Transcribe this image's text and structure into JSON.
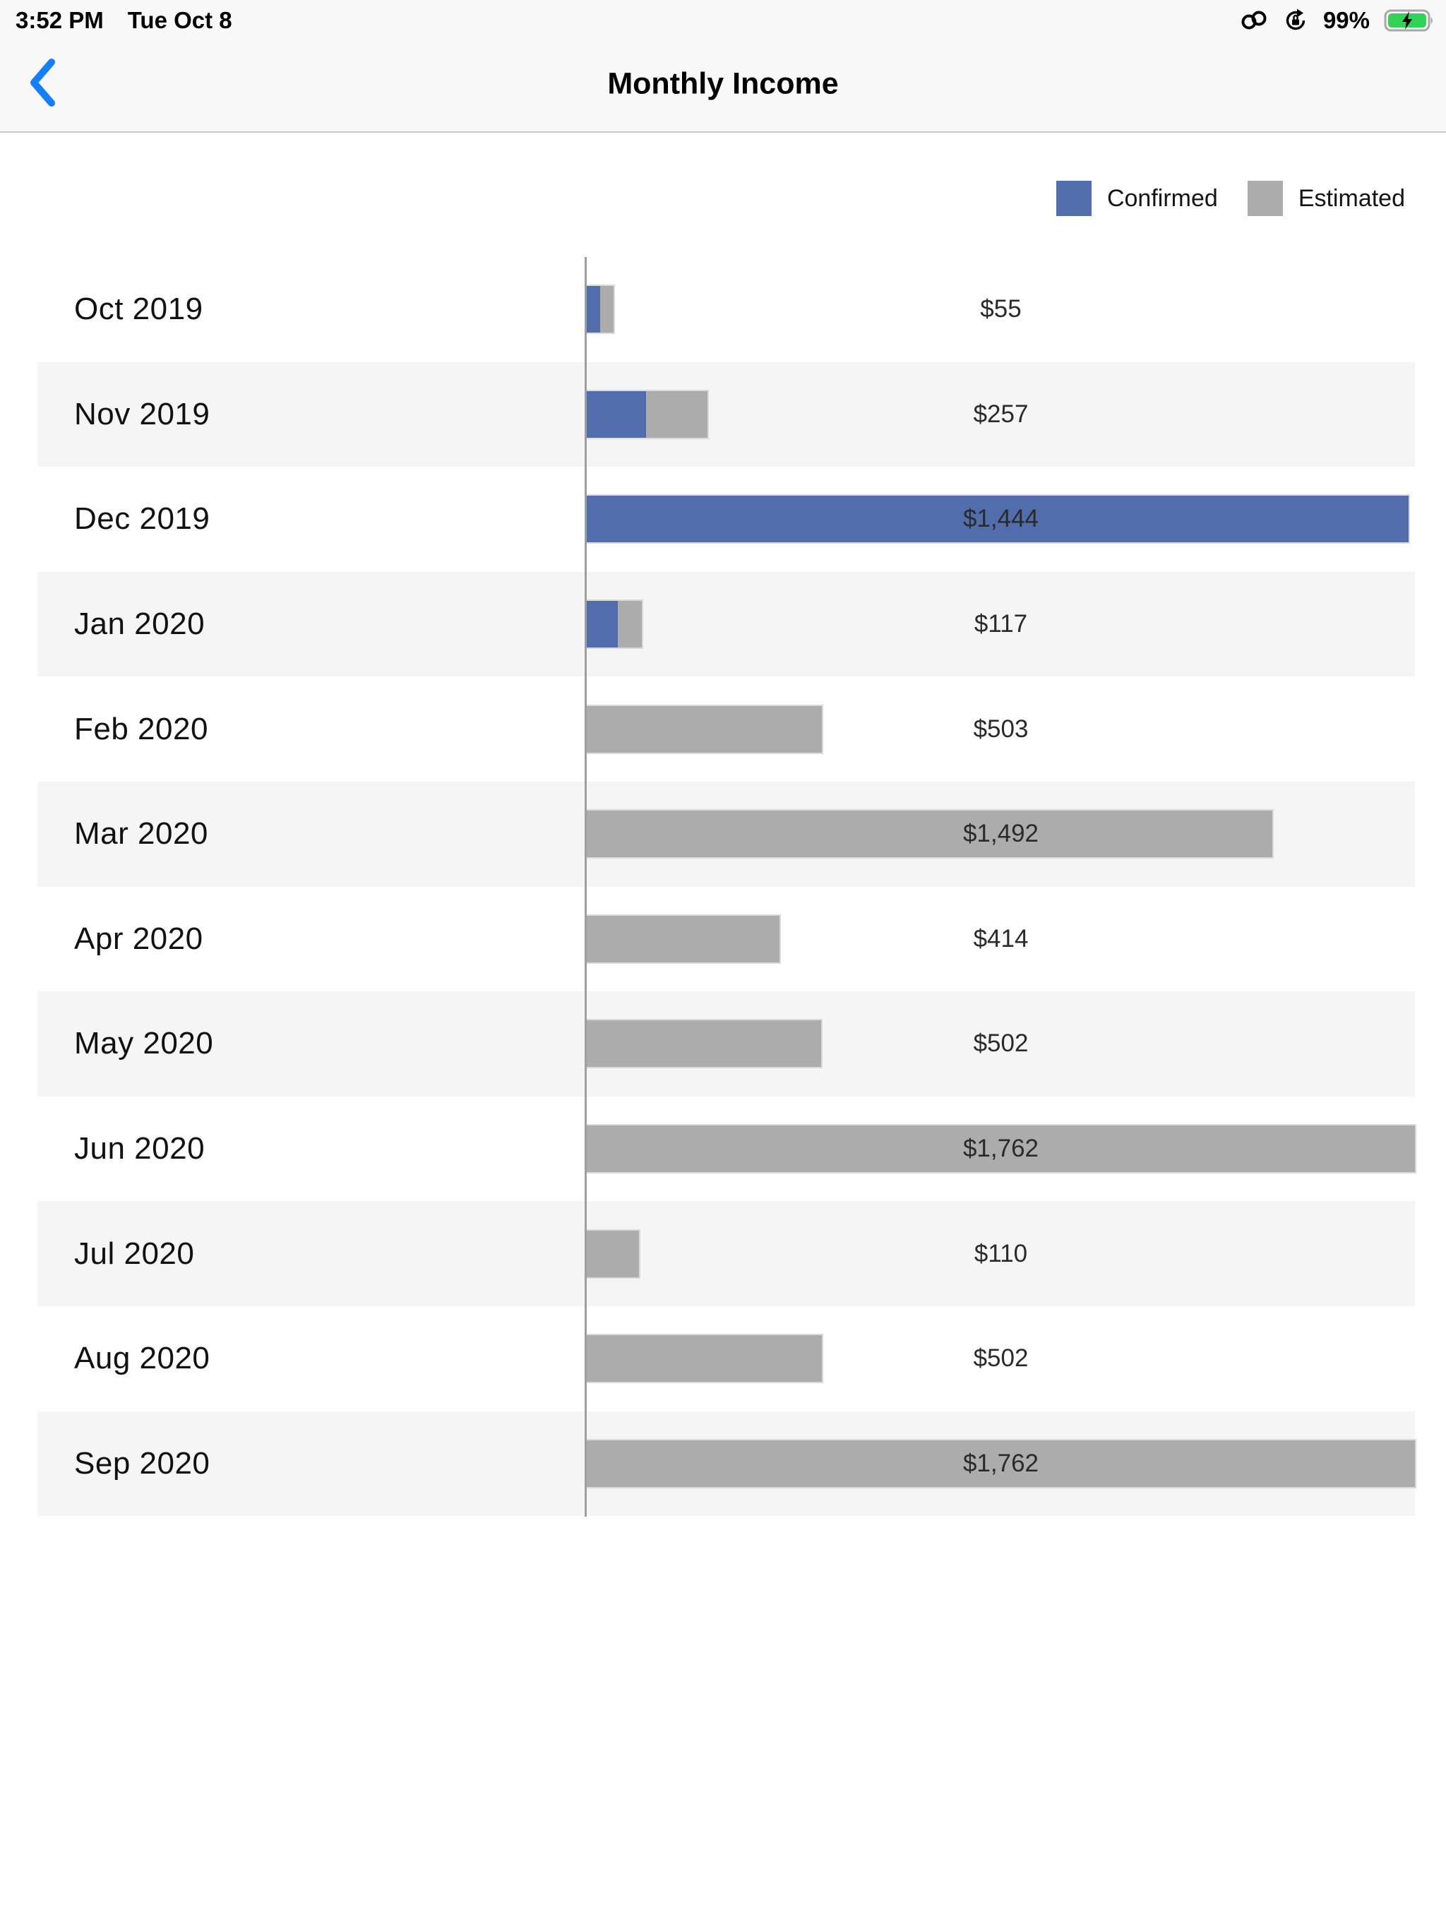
{
  "status_bar": {
    "time": "3:52 PM",
    "date": "Tue Oct 8",
    "battery_percent": "99%",
    "battery_color": "#32d158",
    "icons": [
      "personal-hotspot",
      "rotation-lock",
      "battery-charging"
    ]
  },
  "nav": {
    "title": "Monthly Income",
    "back_color": "#157efb"
  },
  "legend": {
    "confirmed_label": "Confirmed",
    "estimated_label": "Estimated",
    "confirmed_color": "#526dab",
    "estimated_color": "#acacac"
  },
  "chart_data": {
    "type": "bar",
    "orientation": "horizontal",
    "stacked": true,
    "unit": "USD",
    "axis_max": 1762,
    "grid": false,
    "legend_position": "top-right",
    "categories": [
      "Oct 2019",
      "Nov 2019",
      "Dec 2019",
      "Jan 2020",
      "Feb 2020",
      "Mar 2020",
      "Apr 2020",
      "May 2020",
      "Jun 2020",
      "Jul 2020",
      "Aug 2020",
      "Sep 2020"
    ],
    "series": [
      {
        "name": "Confirmed",
        "values": [
          28,
          126,
          1444,
          66,
          0,
          0,
          0,
          0,
          0,
          0,
          0,
          0
        ]
      },
      {
        "name": "Estimated",
        "values": [
          27,
          131,
          0,
          51,
          503,
          1492,
          414,
          502,
          1762,
          110,
          502,
          1762
        ]
      }
    ],
    "rows": [
      {
        "month": "Oct 2019",
        "value_label": "$55",
        "total": 55,
        "confirmed_pct": 1.62,
        "estimated_pct": 1.62
      },
      {
        "month": "Nov 2019",
        "value_label": "$257",
        "total": 257,
        "confirmed_pct": 7.15,
        "estimated_pct": 7.4
      },
      {
        "month": "Dec 2019",
        "value_label": "$1,444",
        "total": 1444,
        "confirmed_pct": 99.2,
        "estimated_pct": 0
      },
      {
        "month": "Jan 2020",
        "value_label": "$117",
        "total": 117,
        "confirmed_pct": 3.74,
        "estimated_pct": 2.9
      },
      {
        "month": "Feb 2020",
        "value_label": "$503",
        "total": 503,
        "confirmed_pct": 0,
        "estimated_pct": 28.4
      },
      {
        "month": "Mar 2020",
        "value_label": "$1,492",
        "total": 1492,
        "confirmed_pct": 0,
        "estimated_pct": 82.8
      },
      {
        "month": "Apr 2020",
        "value_label": "$414",
        "total": 414,
        "confirmed_pct": 0,
        "estimated_pct": 23.3
      },
      {
        "month": "May 2020",
        "value_label": "$502",
        "total": 502,
        "confirmed_pct": 0,
        "estimated_pct": 28.3
      },
      {
        "month": "Jun 2020",
        "value_label": "$1,762",
        "total": 1762,
        "confirmed_pct": 0,
        "estimated_pct": 100
      },
      {
        "month": "Jul 2020",
        "value_label": "$110",
        "total": 110,
        "confirmed_pct": 0,
        "estimated_pct": 6.3
      },
      {
        "month": "Aug 2020",
        "value_label": "$502",
        "total": 502,
        "confirmed_pct": 0,
        "estimated_pct": 28.4
      },
      {
        "month": "Sep 2020",
        "value_label": "$1,762",
        "total": 1762,
        "confirmed_pct": 0,
        "estimated_pct": 100
      }
    ]
  }
}
